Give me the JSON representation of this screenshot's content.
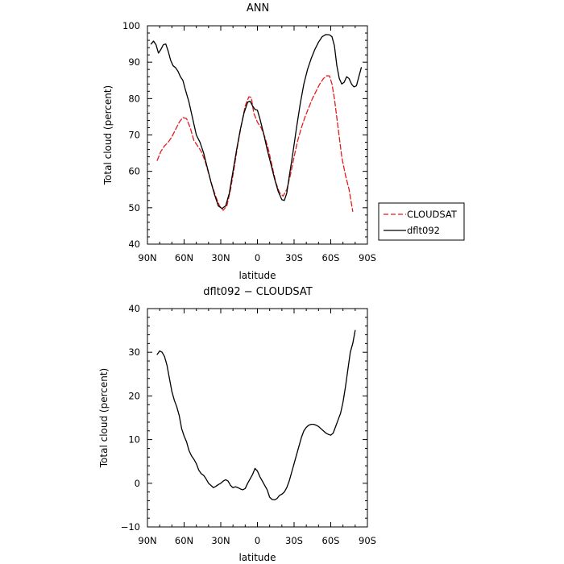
{
  "chart_data": [
    {
      "type": "line",
      "title": "ANN",
      "xlabel": "latitude",
      "ylabel": "Total cloud (percent)",
      "xlim": [
        -90,
        90
      ],
      "ylim": [
        40,
        100
      ],
      "x_ticks": [
        {
          "value": -90,
          "label": "90N"
        },
        {
          "value": -60,
          "label": "60N"
        },
        {
          "value": -30,
          "label": "30N"
        },
        {
          "value": 0,
          "label": "0"
        },
        {
          "value": 30,
          "label": "30S"
        },
        {
          "value": 60,
          "label": "60S"
        },
        {
          "value": 90,
          "label": "90S"
        }
      ],
      "y_ticks": [
        {
          "value": 40,
          "label": "40"
        },
        {
          "value": 50,
          "label": "50"
        },
        {
          "value": 60,
          "label": "60"
        },
        {
          "value": 70,
          "label": "70"
        },
        {
          "value": 80,
          "label": "80"
        },
        {
          "value": 90,
          "label": "90"
        },
        {
          "value": 100,
          "label": "100"
        }
      ],
      "grid": false,
      "legend_position": "right",
      "series": [
        {
          "name": "CLOUDSAT",
          "color": "#e41a1c",
          "dash": "dashed",
          "points": [
            [
              -82,
              63
            ],
            [
              -79,
              65.5
            ],
            [
              -76,
              67
            ],
            [
              -73,
              68
            ],
            [
              -70,
              69.5
            ],
            [
              -67,
              71.5
            ],
            [
              -64,
              73.5
            ],
            [
              -61,
              74.8
            ],
            [
              -58,
              74.5
            ],
            [
              -55,
              72
            ],
            [
              -52,
              68.5
            ],
            [
              -49,
              67
            ],
            [
              -46,
              65.5
            ],
            [
              -43,
              63
            ],
            [
              -40,
              59.5
            ],
            [
              -37,
              56
            ],
            [
              -34,
              53
            ],
            [
              -31,
              50.5
            ],
            [
              -28,
              49.3
            ],
            [
              -25,
              50.5
            ],
            [
              -22,
              55
            ],
            [
              -19,
              61
            ],
            [
              -16,
              67.5
            ],
            [
              -13,
              73
            ],
            [
              -10,
              78
            ],
            [
              -7,
              80.5
            ],
            [
              -5,
              80.3
            ],
            [
              -3,
              76
            ],
            [
              0,
              73.5
            ],
            [
              3,
              72
            ],
            [
              6,
              69.5
            ],
            [
              9,
              66
            ],
            [
              12,
              61.5
            ],
            [
              15,
              57
            ],
            [
              18,
              54.2
            ],
            [
              21,
              53.2
            ],
            [
              24,
              55
            ],
            [
              27,
              59
            ],
            [
              30,
              64
            ],
            [
              33,
              68.5
            ],
            [
              36,
              72
            ],
            [
              39,
              75
            ],
            [
              42,
              77.5
            ],
            [
              45,
              80
            ],
            [
              48,
              82
            ],
            [
              51,
              84
            ],
            [
              54,
              85.5
            ],
            [
              57,
              86.3
            ],
            [
              59,
              86.2
            ],
            [
              61,
              84
            ],
            [
              63,
              80
            ],
            [
              66,
              72
            ],
            [
              69,
              64
            ],
            [
              72,
              59
            ],
            [
              75,
              55
            ],
            [
              78,
              49
            ]
          ]
        },
        {
          "name": "dflt092",
          "color": "#000000",
          "dash": "solid",
          "points": [
            [
              -87,
              95
            ],
            [
              -85,
              95.8
            ],
            [
              -83,
              94.8
            ],
            [
              -81,
              92.5
            ],
            [
              -79,
              93.5
            ],
            [
              -77,
              94.8
            ],
            [
              -75,
              95
            ],
            [
              -73,
              93
            ],
            [
              -71,
              90.5
            ],
            [
              -69,
              89
            ],
            [
              -67,
              88.5
            ],
            [
              -65,
              87.5
            ],
            [
              -63,
              86
            ],
            [
              -61,
              85
            ],
            [
              -59,
              82.5
            ],
            [
              -56,
              79
            ],
            [
              -53,
              74.5
            ],
            [
              -50,
              70
            ],
            [
              -47,
              68
            ],
            [
              -44,
              65
            ],
            [
              -41,
              61
            ],
            [
              -38,
              57
            ],
            [
              -35,
              53.5
            ],
            [
              -32,
              50.5
            ],
            [
              -29,
              49.8
            ],
            [
              -26,
              50.5
            ],
            [
              -23,
              54
            ],
            [
              -20,
              60
            ],
            [
              -17,
              66
            ],
            [
              -14,
              71.5
            ],
            [
              -11,
              76
            ],
            [
              -8,
              79
            ],
            [
              -6,
              79.3
            ],
            [
              -4,
              78
            ],
            [
              -2,
              77
            ],
            [
              0,
              76.8
            ],
            [
              2,
              74.5
            ],
            [
              5,
              70.5
            ],
            [
              8,
              66
            ],
            [
              11,
              62
            ],
            [
              14,
              58
            ],
            [
              17,
              54.5
            ],
            [
              20,
              52.2
            ],
            [
              22,
              52
            ],
            [
              24,
              54
            ],
            [
              26,
              58.5
            ],
            [
              29,
              65
            ],
            [
              32,
              72
            ],
            [
              35,
              78.5
            ],
            [
              38,
              84
            ],
            [
              41,
              88
            ],
            [
              44,
              91
            ],
            [
              47,
              93.5
            ],
            [
              50,
              95.5
            ],
            [
              53,
              97
            ],
            [
              56,
              97.6
            ],
            [
              59,
              97.5
            ],
            [
              61,
              97
            ],
            [
              63,
              94.5
            ],
            [
              65,
              89
            ],
            [
              67,
              85.5
            ],
            [
              69,
              84
            ],
            [
              71,
              84.5
            ],
            [
              73,
              86
            ],
            [
              75,
              85.5
            ],
            [
              77,
              84
            ],
            [
              79,
              83.2
            ],
            [
              81,
              83.5
            ],
            [
              83,
              86
            ],
            [
              85,
              88.5
            ]
          ]
        }
      ]
    },
    {
      "type": "line",
      "title": "dflt092 − CLOUDSAT",
      "xlabel": "latitude",
      "ylabel": "Total cloud (percent)",
      "xlim": [
        -90,
        90
      ],
      "ylim": [
        -10,
        40
      ],
      "x_ticks": [
        {
          "value": -90,
          "label": "90N"
        },
        {
          "value": -60,
          "label": "60N"
        },
        {
          "value": -30,
          "label": "30N"
        },
        {
          "value": 0,
          "label": "0"
        },
        {
          "value": 30,
          "label": "30S"
        },
        {
          "value": 60,
          "label": "60S"
        },
        {
          "value": 90,
          "label": "90S"
        }
      ],
      "y_ticks": [
        {
          "value": -10,
          "label": "−10"
        },
        {
          "value": 0,
          "label": "0"
        },
        {
          "value": 10,
          "label": "10"
        },
        {
          "value": 20,
          "label": "20"
        },
        {
          "value": 30,
          "label": "30"
        },
        {
          "value": 40,
          "label": "40"
        }
      ],
      "grid": false,
      "series": [
        {
          "color": "#000000",
          "dash": "solid",
          "points": [
            [
              -82,
              29.5
            ],
            [
              -80,
              30.3
            ],
            [
              -78,
              30
            ],
            [
              -76,
              29
            ],
            [
              -74,
              27
            ],
            [
              -72,
              24
            ],
            [
              -70,
              21
            ],
            [
              -68,
              19
            ],
            [
              -66,
              17.5
            ],
            [
              -64,
              15.5
            ],
            [
              -62,
              12.5
            ],
            [
              -60,
              10.8
            ],
            [
              -58,
              9.5
            ],
            [
              -56,
              7.5
            ],
            [
              -54,
              6.3
            ],
            [
              -52,
              5.5
            ],
            [
              -50,
              4.5
            ],
            [
              -48,
              3
            ],
            [
              -46,
              2.2
            ],
            [
              -44,
              1.8
            ],
            [
              -42,
              1
            ],
            [
              -40,
              0
            ],
            [
              -38,
              -0.5
            ],
            [
              -36,
              -1
            ],
            [
              -34,
              -0.7
            ],
            [
              -32,
              -0.3
            ],
            [
              -30,
              0
            ],
            [
              -28,
              0.5
            ],
            [
              -26,
              0.8
            ],
            [
              -24,
              0.5
            ],
            [
              -22,
              -0.5
            ],
            [
              -20,
              -1
            ],
            [
              -18,
              -0.8
            ],
            [
              -16,
              -1
            ],
            [
              -14,
              -1.3
            ],
            [
              -12,
              -1.5
            ],
            [
              -10,
              -1.2
            ],
            [
              -8,
              0
            ],
            [
              -6,
              1
            ],
            [
              -4,
              2
            ],
            [
              -2,
              3.4
            ],
            [
              0,
              2.8
            ],
            [
              2,
              1.5
            ],
            [
              4,
              0.5
            ],
            [
              6,
              -0.5
            ],
            [
              8,
              -1.5
            ],
            [
              10,
              -3.2
            ],
            [
              12,
              -3.7
            ],
            [
              14,
              -3.8
            ],
            [
              16,
              -3.5
            ],
            [
              18,
              -2.8
            ],
            [
              20,
              -2.5
            ],
            [
              22,
              -2
            ],
            [
              24,
              -1
            ],
            [
              26,
              0.5
            ],
            [
              28,
              2.5
            ],
            [
              30,
              4.5
            ],
            [
              32,
              6.5
            ],
            [
              34,
              8.5
            ],
            [
              36,
              10.5
            ],
            [
              38,
              12
            ],
            [
              40,
              12.8
            ],
            [
              42,
              13.3
            ],
            [
              44,
              13.5
            ],
            [
              46,
              13.5
            ],
            [
              48,
              13.3
            ],
            [
              50,
              13
            ],
            [
              52,
              12.5
            ],
            [
              54,
              12
            ],
            [
              56,
              11.5
            ],
            [
              58,
              11.2
            ],
            [
              60,
              11
            ],
            [
              62,
              11.5
            ],
            [
              64,
              13
            ],
            [
              66,
              14.5
            ],
            [
              68,
              16
            ],
            [
              70,
              18.5
            ],
            [
              72,
              22
            ],
            [
              74,
              26
            ],
            [
              76,
              30
            ],
            [
              78,
              32
            ],
            [
              80,
              35
            ]
          ]
        }
      ]
    }
  ],
  "legend": {
    "entries": [
      {
        "label": "CLOUDSAT",
        "color": "#e41a1c",
        "dash": "dashed"
      },
      {
        "label": "dflt092",
        "color": "#000000",
        "dash": "solid"
      }
    ]
  }
}
